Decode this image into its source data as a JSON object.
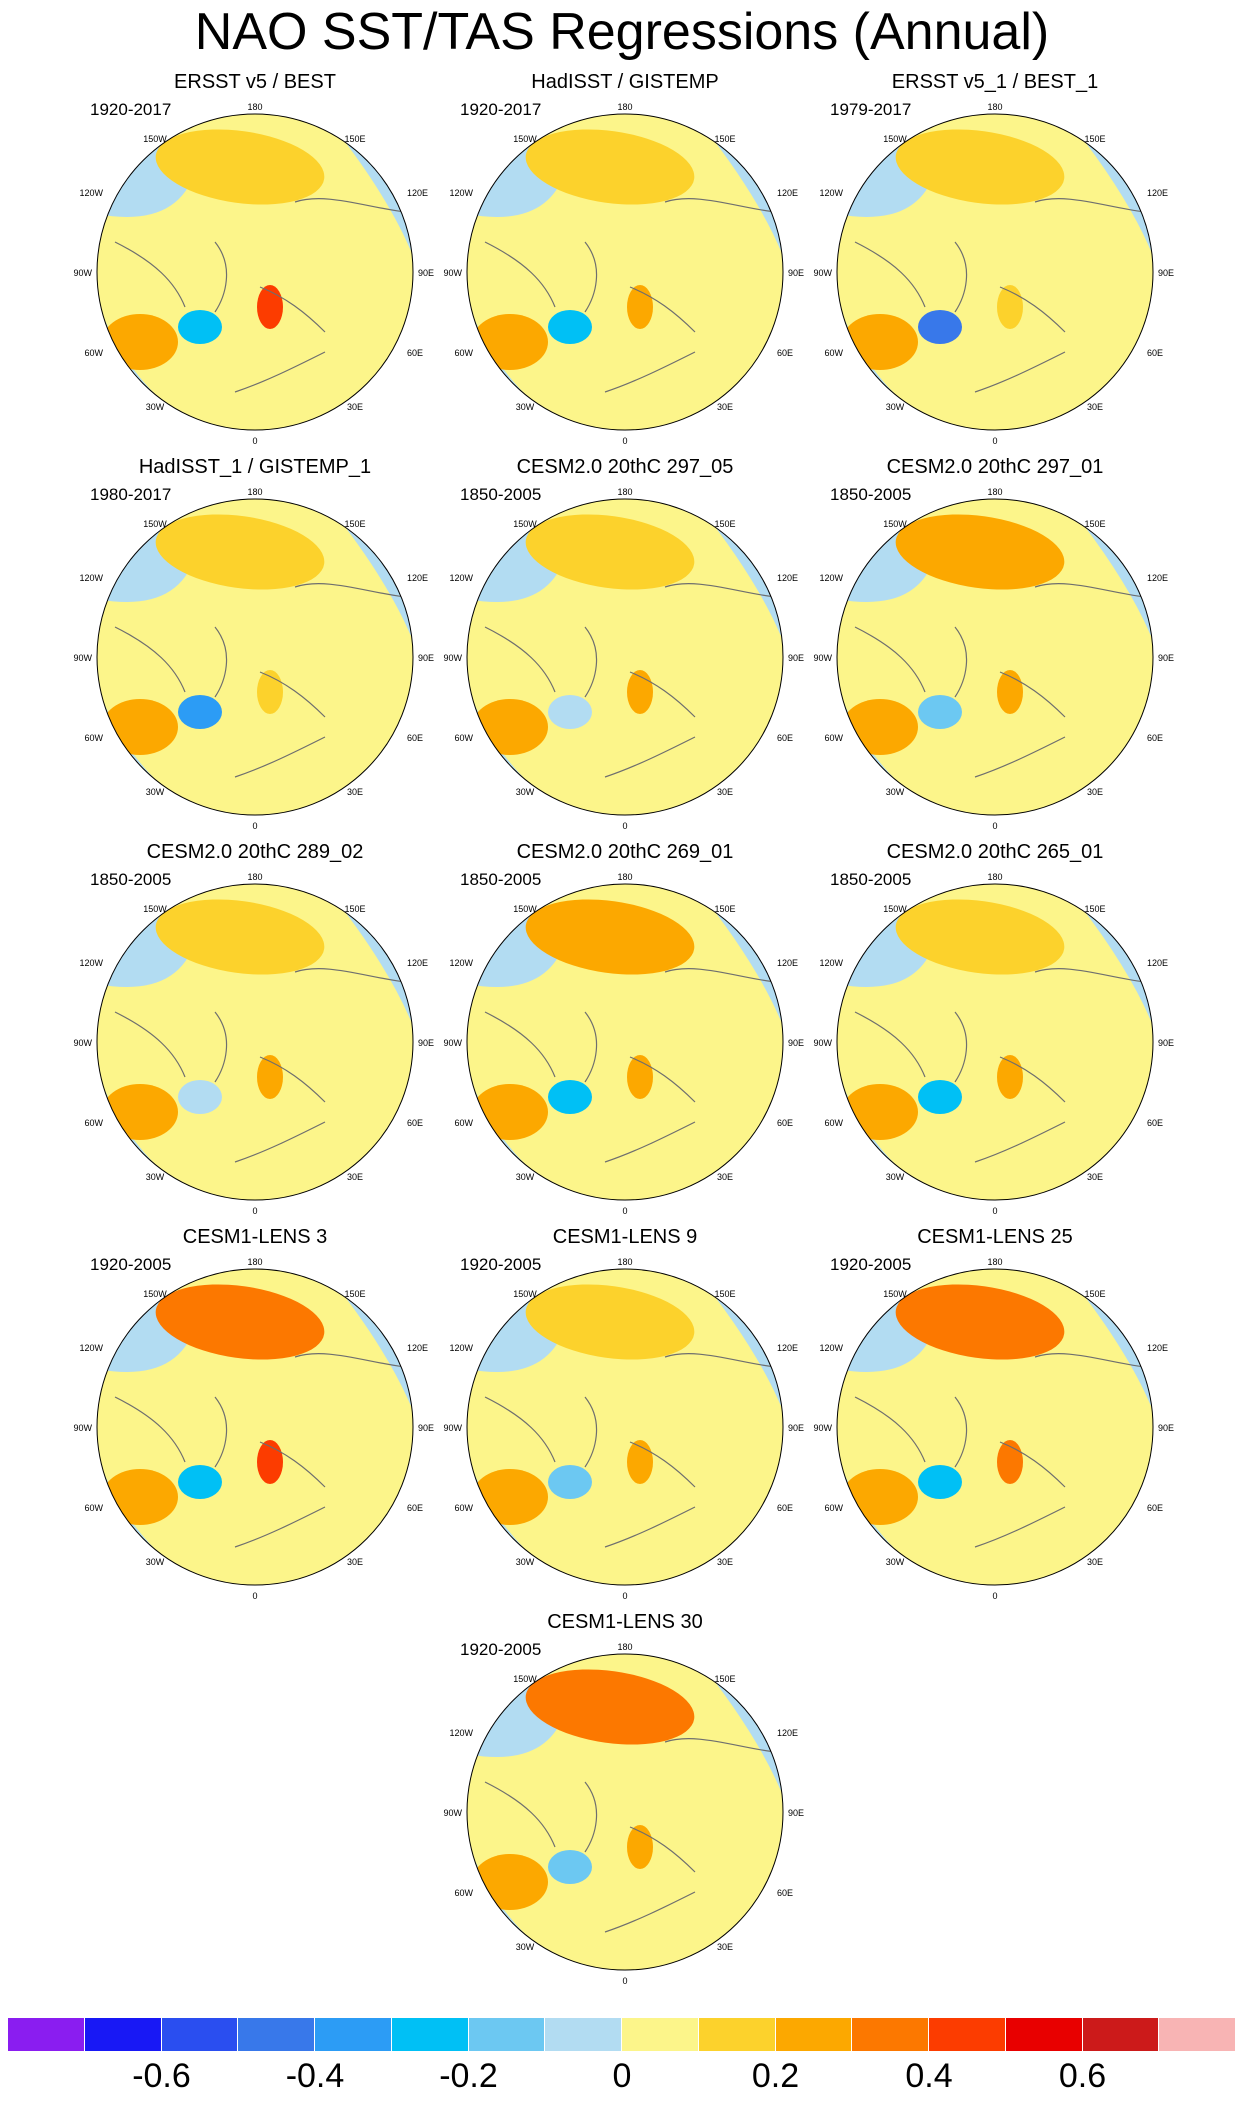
{
  "title": "NAO SST/TAS Regressions (Annual)",
  "axis_labels": {
    "top": "180",
    "bottom": "0",
    "upper_left": "150W",
    "upper_right": "150E",
    "left_upper": "120W",
    "right_upper": "120E",
    "left_mid": "90W",
    "right_mid": "90E",
    "left_lower": "60W",
    "right_lower": "60E",
    "lower_left": "30W",
    "lower_right": "30E"
  },
  "panels": [
    {
      "title": "ERSST v5 / BEST",
      "period": "1920-2017",
      "pacific": 0.15,
      "atlantic": -0.3,
      "europe": 0.4
    },
    {
      "title": "HadISST / GISTEMP",
      "period": "1920-2017",
      "pacific": 0.12,
      "atlantic": -0.3,
      "europe": 0.2
    },
    {
      "title": "ERSST v5_1 / BEST_1",
      "period": "1979-2017",
      "pacific": 0.15,
      "atlantic": -0.5,
      "europe": 0.15
    },
    {
      "title": "HadISST_1 / GISTEMP_1",
      "period": "1980-2017",
      "pacific": 0.15,
      "atlantic": -0.4,
      "europe": 0.15
    },
    {
      "title": "CESM2.0 20thC 297_05",
      "period": "1850-2005",
      "pacific": 0.15,
      "atlantic": -0.1,
      "europe": 0.2
    },
    {
      "title": "CESM2.0 20thC 297_01",
      "period": "1850-2005",
      "pacific": 0.2,
      "atlantic": -0.2,
      "europe": 0.25
    },
    {
      "title": "CESM2.0 20thC 289_02",
      "period": "1850-2005",
      "pacific": 0.15,
      "atlantic": -0.1,
      "europe": 0.2
    },
    {
      "title": "CESM2.0 20thC 269_01",
      "period": "1850-2005",
      "pacific": 0.25,
      "atlantic": -0.3,
      "europe": 0.25
    },
    {
      "title": "CESM2.0 20thC 265_01",
      "period": "1850-2005",
      "pacific": 0.1,
      "atlantic": -0.3,
      "europe": 0.2
    },
    {
      "title": "CESM1-LENS 3",
      "period": "1920-2005",
      "pacific": 0.3,
      "atlantic": -0.3,
      "europe": 0.45
    },
    {
      "title": "CESM1-LENS 9",
      "period": "1920-2005",
      "pacific": 0.15,
      "atlantic": -0.2,
      "europe": 0.25
    },
    {
      "title": "CESM1-LENS 25",
      "period": "1920-2005",
      "pacific": 0.3,
      "atlantic": -0.3,
      "europe": 0.3
    },
    {
      "title": "CESM1-LENS 30",
      "period": "1920-2005",
      "pacific": 0.3,
      "atlantic": -0.2,
      "europe": 0.2
    }
  ],
  "colorbar": {
    "colors": [
      "#8a1df0",
      "#1818f5",
      "#2a4ef0",
      "#3878ea",
      "#2c9cf5",
      "#00c0f5",
      "#6cc8f2",
      "#b2dcf2",
      "#fcf58a",
      "#fcd22c",
      "#fca800",
      "#fc7800",
      "#fc3c00",
      "#e80000",
      "#cc1a1a",
      "#f8b4b4"
    ],
    "levels": [
      -0.7,
      -0.6,
      -0.5,
      -0.4,
      -0.3,
      -0.2,
      -0.1,
      0,
      0.1,
      0.2,
      0.3,
      0.4,
      0.5,
      0.6,
      0.7
    ],
    "labels": [
      "-0.6",
      "-0.4",
      "-0.2",
      "0",
      "0.2",
      "0.4",
      "0.6"
    ],
    "label_values": [
      -0.6,
      -0.4,
      -0.2,
      0,
      0.2,
      0.4,
      0.6
    ]
  }
}
